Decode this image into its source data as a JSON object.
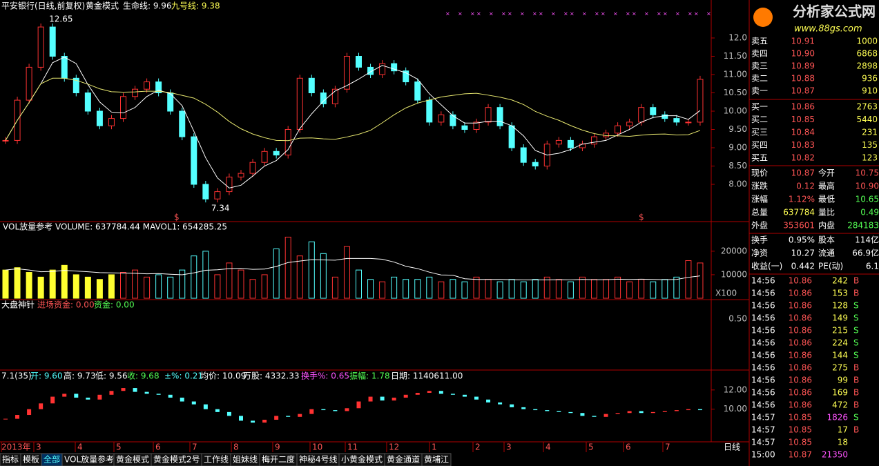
{
  "header": {
    "stock": "平安银行(日线,前复权)",
    "mode": "黄金模式",
    "life_line": "生命线: 9.96",
    "nine_line": "九号线: 9.38"
  },
  "main": {
    "peak_label": "12.65",
    "trough_label": "7.34",
    "signal": "$",
    "ylim": [
      7,
      13
    ],
    "yticks": [
      {
        "value": 12,
        "label": "12.0"
      },
      {
        "value": 11.5,
        "label": "11.50"
      },
      {
        "value": 11,
        "label": "11.00"
      },
      {
        "value": 10.5,
        "label": "10.50"
      },
      {
        "value": 10,
        "label": "10.00"
      },
      {
        "value": 9.5,
        "label": "9.50"
      },
      {
        "value": 9,
        "label": "9.00"
      },
      {
        "value": 8.5,
        "label": "8.50"
      },
      {
        "value": 8,
        "label": "8.00"
      }
    ],
    "closes": [
      9.2,
      10.3,
      11.2,
      12.3,
      11.5,
      10.9,
      10.5,
      10.0,
      9.6,
      9.8,
      10.4,
      10.6,
      10.8,
      10.5,
      10.0,
      9.3,
      8.0,
      7.6,
      7.8,
      8.2,
      8.3,
      8.6,
      8.9,
      8.8,
      9.5,
      10.9,
      10.5,
      10.2,
      10.6,
      11.5,
      11.2,
      11.0,
      11.3,
      11.1,
      10.8,
      10.3,
      9.7,
      9.9,
      9.6,
      9.5,
      9.7,
      10.1,
      9.6,
      9.0,
      8.6,
      8.5,
      9.1,
      9.2,
      9.0,
      9.1,
      9.3,
      9.4,
      9.6,
      9.7,
      10.1,
      9.9,
      9.8,
      9.7,
      9.7,
      10.87
    ]
  },
  "volume": {
    "title": "VOL放量参考 VOLUME: 637784.44 MAVOL1: 654285.25",
    "unit": "X100",
    "ylim": [
      0,
      32000
    ],
    "yticks": [
      20000,
      10000
    ],
    "values": [
      12000,
      13000,
      11000,
      9000,
      12000,
      14000,
      10000,
      9000,
      8000,
      10000,
      11000,
      12000,
      9000,
      10000,
      9000,
      12000,
      18000,
      20000,
      10000,
      15000,
      12000,
      8000,
      10000,
      21000,
      26000,
      18000,
      24000,
      19000,
      9000,
      22000,
      12000,
      8000,
      7000,
      9000,
      8000,
      8000,
      9000,
      7000,
      8000,
      7000,
      9000,
      8000,
      7000,
      8000,
      7000,
      8000,
      9000,
      8000,
      7000,
      9000,
      8000,
      8000,
      9000,
      7000,
      8000,
      7000,
      8000,
      9000,
      16000,
      15000
    ]
  },
  "indicator": {
    "name": "大盘神针",
    "in_fund": "进场资金: 0.00",
    "fund": "资金: 0.00",
    "ytick": "0.50"
  },
  "index": {
    "items": [
      "7.1(35)",
      "开: 9.60",
      "高: 9.73",
      "低: 9.56",
      "收: 9.68",
      "±%: 0.21",
      "均价: 10.09",
      "万股: 4332.33",
      "换手%: 0.65",
      "振幅: 1.78",
      "日期: 1140611.00"
    ],
    "ylim": [
      6.6,
      14
    ],
    "yticks": [
      {
        "value": 12,
        "label": "12.00"
      },
      {
        "value": 10,
        "label": "10.00"
      }
    ],
    "values": [
      9.0,
      9.4,
      10.0,
      10.6,
      11.3,
      11.6,
      11.2,
      11.0,
      11.5,
      11.9,
      12.2,
      11.8,
      11.6,
      11.5,
      11.2,
      10.8,
      10.5,
      10.0,
      9.7,
      9.3,
      8.8,
      8.6,
      8.9,
      9.3,
      9.2,
      9.5,
      10.0,
      9.9,
      9.8,
      10.1,
      10.8,
      11.3,
      10.9,
      11.2,
      11.5,
      11.7,
      11.9,
      11.6,
      11.5,
      11.3,
      11.0,
      10.7,
      10.5,
      10.2,
      10.0,
      9.9,
      9.8,
      9.7,
      9.6,
      9.3,
      9.2,
      9.5,
      9.6,
      9.8,
      9.6,
      9.7,
      9.8,
      9.9,
      10.0,
      9.9
    ]
  },
  "dates": [
    "2013年",
    "3",
    "4",
    "5",
    "6",
    "7",
    "8",
    "9",
    "10",
    "11",
    "12",
    "1",
    "2",
    "3",
    "4",
    "5",
    "6",
    "7"
  ],
  "period": "日线",
  "tabs": [
    "指标",
    "模板",
    "全部",
    "VOL放量参考",
    "黄金模式",
    "黄金模式2号",
    "工作线",
    "姐妹线",
    "梅开二度",
    "神秘4号线",
    "小黄金模式",
    "黄金通道",
    "黄埔江"
  ],
  "logo": {
    "name": "分析家公式网",
    "url": "www.88gs.com"
  },
  "asks": [
    [
      "卖五",
      "10.91",
      "1000"
    ],
    [
      "卖四",
      "10.90",
      "6868"
    ],
    [
      "卖三",
      "10.89",
      "2898"
    ],
    [
      "卖二",
      "10.88",
      "936"
    ],
    [
      "卖一",
      "10.87",
      "910"
    ]
  ],
  "bids": [
    [
      "买一",
      "10.86",
      "2763"
    ],
    [
      "买二",
      "10.85",
      "5440"
    ],
    [
      "买三",
      "10.84",
      "231"
    ],
    [
      "买四",
      "10.83",
      "135"
    ],
    [
      "买五",
      "10.82",
      "123"
    ]
  ],
  "stats": [
    [
      "现价",
      "10.87",
      "今开",
      "10.75"
    ],
    [
      "涨跌",
      "0.12",
      "最高",
      "10.90"
    ],
    [
      "涨幅",
      "1.12%",
      "最低",
      "10.65"
    ],
    [
      "总量",
      "637784",
      "量比",
      "0.49"
    ],
    [
      "外盘",
      "353601",
      "内盘",
      "284183"
    ]
  ],
  "info": [
    [
      "换手",
      "0.95%",
      "股本",
      "114亿"
    ],
    [
      "净资",
      "10.27",
      "流通",
      "66.9亿"
    ],
    [
      "收益(一)",
      "0.442",
      "PE(动)",
      "6.1"
    ]
  ],
  "trades": [
    [
      "14:56",
      "10.86",
      "242",
      "B"
    ],
    [
      "14:56",
      "10.86",
      "153",
      "B"
    ],
    [
      "14:56",
      "10.86",
      "128",
      "S"
    ],
    [
      "14:56",
      "10.86",
      "149",
      "S"
    ],
    [
      "14:56",
      "10.86",
      "215",
      "S"
    ],
    [
      "14:56",
      "10.86",
      "224",
      "S"
    ],
    [
      "14:56",
      "10.86",
      "144",
      "S"
    ],
    [
      "14:56",
      "10.86",
      "275",
      "B"
    ],
    [
      "14:56",
      "10.86",
      "99",
      "B"
    ],
    [
      "14:56",
      "10.86",
      "169",
      "B"
    ],
    [
      "14:56",
      "10.86",
      "472",
      "B"
    ],
    [
      "14:57",
      "10.85",
      "1826",
      "S"
    ],
    [
      "14:57",
      "10.85",
      "17",
      "B"
    ],
    [
      "14:57",
      "10.85",
      "18",
      ""
    ],
    [
      "15:00",
      "10.87",
      "21350",
      ""
    ]
  ]
}
